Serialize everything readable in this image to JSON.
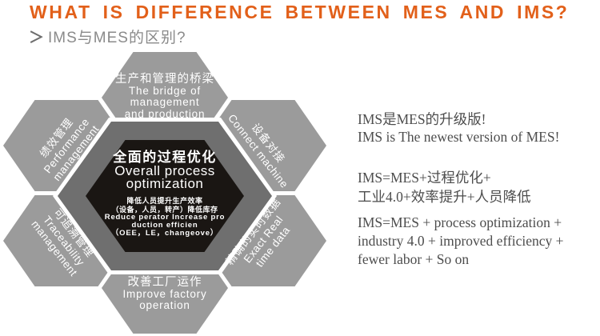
{
  "header": {
    "title": "WHAT IS DIFFERENCE BETWEEN MES AND IMS?",
    "subtitle_marker": "＞",
    "subtitle": "IMS与MES的区别?"
  },
  "diagram": {
    "center": {
      "title_zh": "全面的过程优化",
      "title_en_line1": "Overall process",
      "title_en_line2": "optimization",
      "sub_zh_line1": "降低人员提升生产效率",
      "sub_zh_line2": "（设备，人员，转产）降低库存",
      "sub_en_line1": "Reduce perator Increase pro",
      "sub_en_line2": "duction efficien",
      "sub_en_line3": "（OEE，LE，changeove）"
    },
    "hexagons": [
      {
        "id": "top",
        "zh": "生产和管理的桥梁",
        "en": [
          "The bridge of",
          "management",
          "and production"
        ]
      },
      {
        "id": "top-right",
        "zh": "设备对接",
        "en": [
          "Connect machine"
        ]
      },
      {
        "id": "bottom-right",
        "zh": "精确的实时数据",
        "en": [
          "Exact Real",
          "time data"
        ]
      },
      {
        "id": "bottom",
        "zh": "改善工厂运作",
        "en": [
          "Improve factory",
          "operation"
        ]
      },
      {
        "id": "bottom-left",
        "zh": "可追溯管理",
        "en": [
          "Traceability",
          "management"
        ]
      },
      {
        "id": "top-left",
        "zh": "绩效管理",
        "en": [
          "Performance",
          "management"
        ]
      }
    ]
  },
  "notes": {
    "line1": "IMS是MES的升级版!",
    "line2": "IMS is The newest version of MES!",
    "line3": "IMS=MES+过程优化+",
    "line4": "工业4.0+效率提升+人员降低",
    "line5": "IMS=MES + process optimization +",
    "line6": "industry 4.0 + improved efficiency +",
    "line7": "fewer labor + So on"
  },
  "colors": {
    "title_accent": "#e2601a",
    "subtitle_gray": "#8a8a8a",
    "hex_outer": "#9b9b9b",
    "hex_ring": "#6f6f6f",
    "hex_center": "#1a1613",
    "hex_text": "#ffffff",
    "notes_text": "#4d4d4d"
  }
}
